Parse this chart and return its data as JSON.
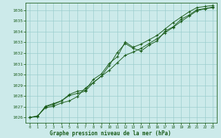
{
  "title": "Graphe pression niveau de la mer (hPa)",
  "bg_color": "#cceaea",
  "grid_color": "#99cccc",
  "line_color": "#1a5c1a",
  "marker_color": "#1a5c1a",
  "xlim": [
    -0.5,
    23.5
  ],
  "ylim": [
    1025.5,
    1036.7
  ],
  "xticks": [
    0,
    1,
    2,
    3,
    4,
    5,
    6,
    7,
    8,
    9,
    10,
    11,
    12,
    13,
    14,
    15,
    16,
    17,
    18,
    19,
    20,
    21,
    22,
    23
  ],
  "yticks": [
    1026,
    1027,
    1028,
    1029,
    1030,
    1031,
    1032,
    1033,
    1034,
    1035,
    1036
  ],
  "series1_x": [
    0,
    1,
    2,
    3,
    4,
    5,
    6,
    7,
    8,
    9,
    10,
    11,
    12,
    13,
    14,
    15,
    16,
    17,
    18,
    19,
    20,
    21,
    22,
    23
  ],
  "series1_y": [
    1026.0,
    1026.15,
    1026.9,
    1027.05,
    1027.35,
    1027.55,
    1027.95,
    1028.75,
    1029.25,
    1029.85,
    1030.4,
    1031.1,
    1031.8,
    1032.1,
    1032.45,
    1032.9,
    1033.35,
    1033.9,
    1034.4,
    1034.95,
    1035.45,
    1035.95,
    1036.15,
    1036.25
  ],
  "series2_x": [
    0,
    1,
    2,
    3,
    4,
    5,
    6,
    7,
    8,
    9,
    10,
    11,
    12,
    13,
    14,
    15,
    16,
    17,
    18,
    19,
    20,
    21,
    22,
    23
  ],
  "series2_y": [
    1026.0,
    1026.1,
    1027.0,
    1027.2,
    1027.55,
    1028.05,
    1028.25,
    1028.45,
    1029.25,
    1029.85,
    1030.85,
    1032.05,
    1032.9,
    1032.45,
    1032.2,
    1032.75,
    1033.15,
    1034.05,
    1034.45,
    1035.15,
    1035.55,
    1036.05,
    1036.15,
    1036.3
  ],
  "series3_x": [
    0,
    1,
    2,
    3,
    4,
    5,
    6,
    7,
    8,
    9,
    10,
    11,
    12,
    13,
    14,
    15,
    16,
    17,
    18,
    19,
    20,
    21,
    22,
    23
  ],
  "series3_y": [
    1026.0,
    1026.1,
    1027.05,
    1027.3,
    1027.55,
    1028.15,
    1028.45,
    1028.55,
    1029.55,
    1030.05,
    1031.05,
    1031.65,
    1033.05,
    1032.55,
    1032.85,
    1033.25,
    1033.65,
    1034.25,
    1034.85,
    1035.35,
    1035.85,
    1036.25,
    1036.35,
    1036.45
  ]
}
